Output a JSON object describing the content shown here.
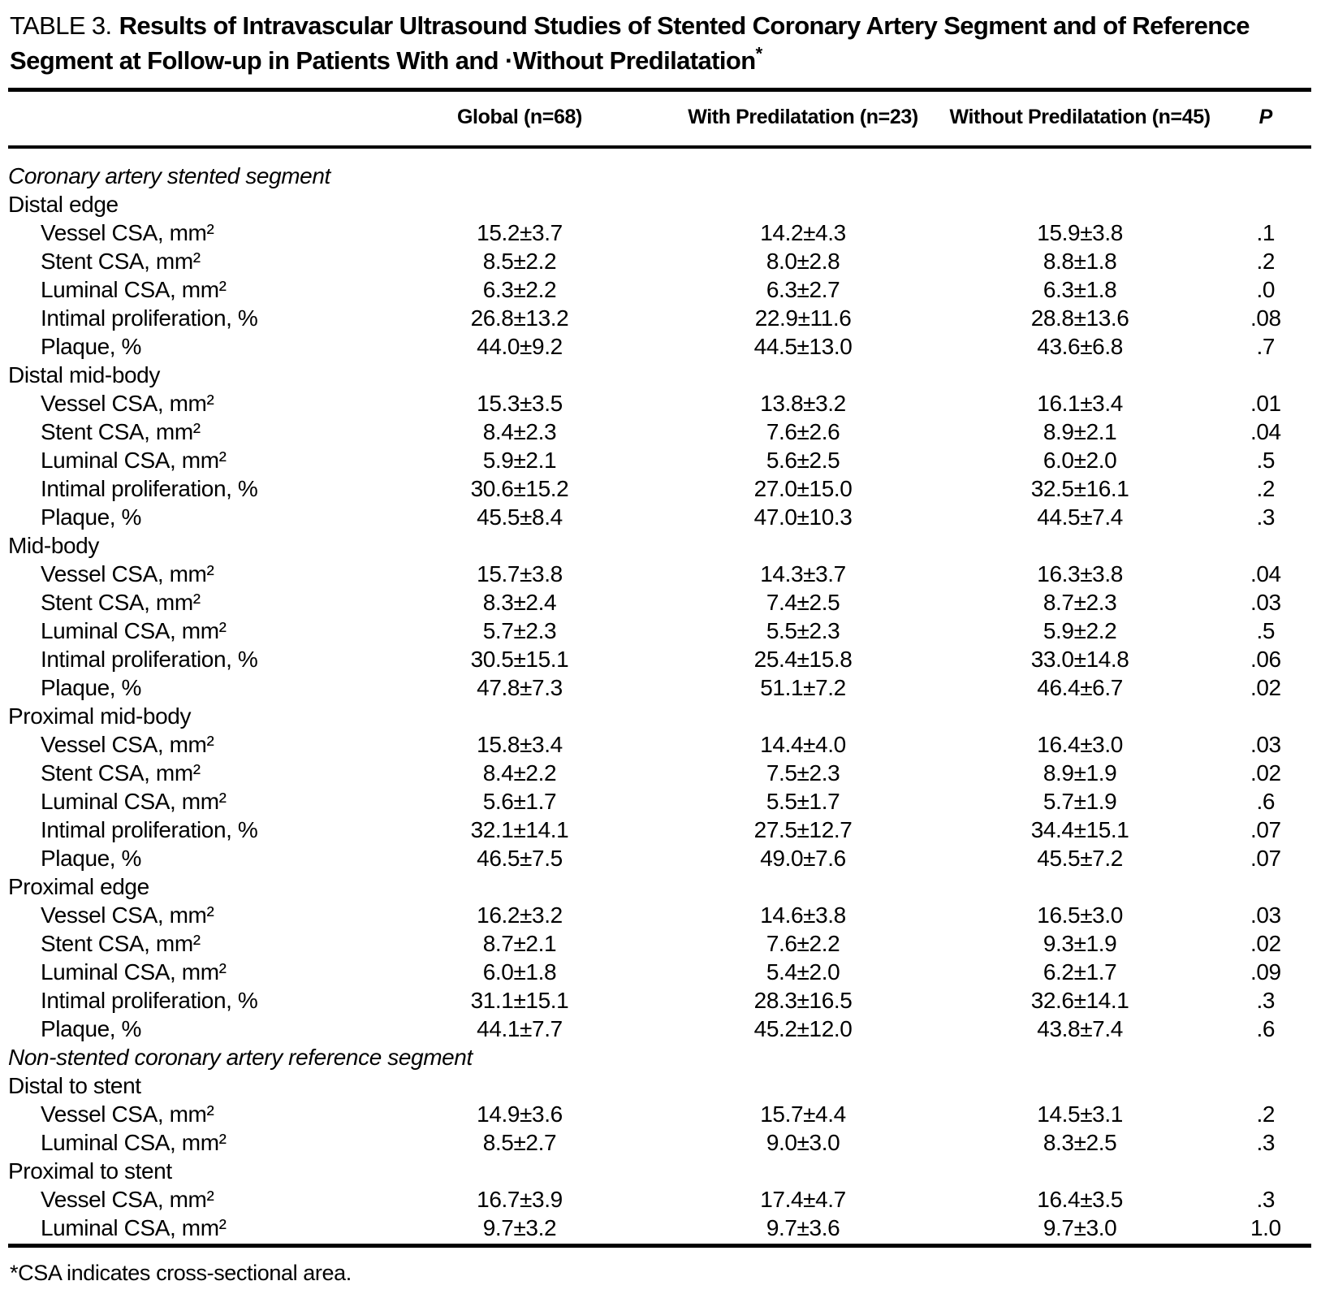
{
  "title": {
    "prefix": "TABLE 3.",
    "text": "Results of Intravascular Ultrasound Studies of Stented Coronary Artery Segment and of Reference Segment at Follow-up in Patients With and ·Without Predilatation",
    "asterisk": "*"
  },
  "columns": [
    "Global (n=68)",
    "With Predilatation (n=23)",
    "Without Predilatation (n=45)",
    "P"
  ],
  "table": {
    "rows": [
      {
        "type": "section",
        "label": "Coronary artery stented segment"
      },
      {
        "type": "group",
        "label": "Distal edge"
      },
      {
        "type": "data",
        "label": "Vessel CSA, mm²",
        "global": "15.2±3.7",
        "with_pre": "14.2±4.3",
        "without_pre": "15.9±3.8",
        "p": ".1"
      },
      {
        "type": "data",
        "label": "Stent CSA, mm²",
        "global": "8.5±2.2",
        "with_pre": "8.0±2.8",
        "without_pre": "8.8±1.8",
        "p": ".2"
      },
      {
        "type": "data",
        "label": "Luminal CSA, mm²",
        "global": "6.3±2.2",
        "with_pre": "6.3±2.7",
        "without_pre": "6.3±1.8",
        "p": ".0"
      },
      {
        "type": "data",
        "label": "Intimal proliferation, %",
        "global": "26.8±13.2",
        "with_pre": "22.9±11.6",
        "without_pre": "28.8±13.6",
        "p": ".08"
      },
      {
        "type": "data",
        "label": "Plaque, %",
        "global": "44.0±9.2",
        "with_pre": "44.5±13.0",
        "without_pre": "43.6±6.8",
        "p": ".7"
      },
      {
        "type": "group",
        "label": "Distal mid-body"
      },
      {
        "type": "data",
        "label": "Vessel CSA, mm²",
        "global": "15.3±3.5",
        "with_pre": "13.8±3.2",
        "without_pre": "16.1±3.4",
        "p": ".01"
      },
      {
        "type": "data",
        "label": "Stent CSA, mm²",
        "global": "8.4±2.3",
        "with_pre": "7.6±2.6",
        "without_pre": "8.9±2.1",
        "p": ".04"
      },
      {
        "type": "data",
        "label": "Luminal CSA, mm²",
        "global": "5.9±2.1",
        "with_pre": "5.6±2.5",
        "without_pre": "6.0±2.0",
        "p": ".5"
      },
      {
        "type": "data",
        "label": "Intimal proliferation, %",
        "global": "30.6±15.2",
        "with_pre": "27.0±15.0",
        "without_pre": "32.5±16.1",
        "p": ".2"
      },
      {
        "type": "data",
        "label": "Plaque, %",
        "global": "45.5±8.4",
        "with_pre": "47.0±10.3",
        "without_pre": "44.5±7.4",
        "p": ".3"
      },
      {
        "type": "group",
        "label": "Mid-body"
      },
      {
        "type": "data",
        "label": "Vessel CSA, mm²",
        "global": "15.7±3.8",
        "with_pre": "14.3±3.7",
        "without_pre": "16.3±3.8",
        "p": ".04"
      },
      {
        "type": "data",
        "label": "Stent CSA, mm²",
        "global": "8.3±2.4",
        "with_pre": "7.4±2.5",
        "without_pre": "8.7±2.3",
        "p": ".03"
      },
      {
        "type": "data",
        "label": "Luminal CSA, mm²",
        "global": "5.7±2.3",
        "with_pre": "5.5±2.3",
        "without_pre": "5.9±2.2",
        "p": ".5"
      },
      {
        "type": "data",
        "label": "Intimal proliferation, %",
        "global": "30.5±15.1",
        "with_pre": "25.4±15.8",
        "without_pre": "33.0±14.8",
        "p": ".06"
      },
      {
        "type": "data",
        "label": "Plaque, %",
        "global": "47.8±7.3",
        "with_pre": "51.1±7.2",
        "without_pre": "46.4±6.7",
        "p": ".02"
      },
      {
        "type": "group",
        "label": "Proximal mid-body"
      },
      {
        "type": "data",
        "label": "Vessel CSA, mm²",
        "global": "15.8±3.4",
        "with_pre": "14.4±4.0",
        "without_pre": "16.4±3.0",
        "p": ".03"
      },
      {
        "type": "data",
        "label": "Stent CSA, mm²",
        "global": "8.4±2.2",
        "with_pre": "7.5±2.3",
        "without_pre": "8.9±1.9",
        "p": ".02"
      },
      {
        "type": "data",
        "label": "Luminal CSA, mm²",
        "global": "5.6±1.7",
        "with_pre": "5.5±1.7",
        "without_pre": "5.7±1.9",
        "p": ".6"
      },
      {
        "type": "data",
        "label": "Intimal proliferation, %",
        "global": "32.1±14.1",
        "with_pre": "27.5±12.7",
        "without_pre": "34.4±15.1",
        "p": ".07"
      },
      {
        "type": "data",
        "label": "Plaque, %",
        "global": "46.5±7.5",
        "with_pre": "49.0±7.6",
        "without_pre": "45.5±7.2",
        "p": ".07"
      },
      {
        "type": "group",
        "label": "Proximal edge"
      },
      {
        "type": "data",
        "label": "Vessel CSA, mm²",
        "global": "16.2±3.2",
        "with_pre": "14.6±3.8",
        "without_pre": "16.5±3.0",
        "p": ".03"
      },
      {
        "type": "data",
        "label": "Stent CSA, mm²",
        "global": "8.7±2.1",
        "with_pre": "7.6±2.2",
        "without_pre": "9.3±1.9",
        "p": ".02"
      },
      {
        "type": "data",
        "label": "Luminal CSA, mm²",
        "global": "6.0±1.8",
        "with_pre": "5.4±2.0",
        "without_pre": "6.2±1.7",
        "p": ".09"
      },
      {
        "type": "data",
        "label": "Intimal proliferation, %",
        "global": "31.1±15.1",
        "with_pre": "28.3±16.5",
        "without_pre": "32.6±14.1",
        "p": ".3"
      },
      {
        "type": "data",
        "label": "Plaque, %",
        "global": "44.1±7.7",
        "with_pre": "45.2±12.0",
        "without_pre": "43.8±7.4",
        "p": ".6"
      },
      {
        "type": "section",
        "label": "Non-stented coronary artery reference segment"
      },
      {
        "type": "group",
        "label": "Distal to stent"
      },
      {
        "type": "data",
        "label": "Vessel CSA, mm²",
        "global": "14.9±3.6",
        "with_pre": "15.7±4.4",
        "without_pre": "14.5±3.1",
        "p": ".2"
      },
      {
        "type": "data",
        "label": "Luminal CSA, mm²",
        "global": "8.5±2.7",
        "with_pre": "9.0±3.0",
        "without_pre": "8.3±2.5",
        "p": ".3"
      },
      {
        "type": "group",
        "label": "Proximal to stent"
      },
      {
        "type": "data",
        "label": "Vessel CSA, mm²",
        "global": "16.7±3.9",
        "with_pre": "17.4±4.7",
        "without_pre": "16.4±3.5",
        "p": ".3"
      },
      {
        "type": "data",
        "label": "Luminal CSA, mm²",
        "global": "9.7±3.2",
        "with_pre": "9.7±3.6",
        "without_pre": "9.7±3.0",
        "p": "1.0"
      }
    ]
  },
  "footnote": "*CSA indicates cross-sectional area."
}
